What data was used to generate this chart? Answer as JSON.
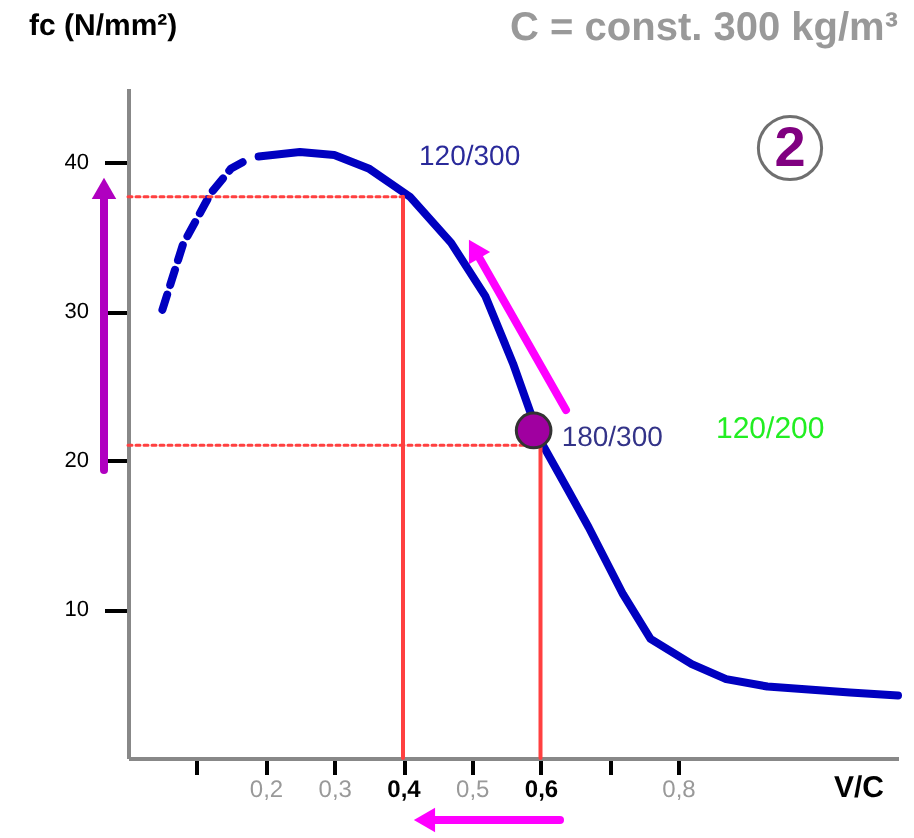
{
  "chart_data": {
    "type": "line",
    "title": "C = const. 300 kg/m³",
    "xlabel": "V/C",
    "ylabel": "fc (N/mm²)",
    "xlim": [
      0,
      1.12
    ],
    "xticks": [
      {
        "value": 0.1,
        "label": null
      },
      {
        "value": 0.2,
        "label": "0,2"
      },
      {
        "value": 0.3,
        "label": "0,3"
      },
      {
        "value": 0.4,
        "label": "0,4"
      },
      {
        "value": 0.5,
        "label": "0,5"
      },
      {
        "value": 0.6,
        "label": "0,6"
      },
      {
        "value": 0.7,
        "label": null
      },
      {
        "value": 0.8,
        "label": "0,8"
      }
    ],
    "ylim": [
      0,
      45
    ],
    "yticks": [
      10,
      20,
      30,
      40
    ],
    "grid": false,
    "series": [
      {
        "color": "#0000c0",
        "line_style": "dashed",
        "x": [
          0.05,
          0.08,
          0.12,
          0.15,
          0.17
        ],
        "values": [
          30.1,
          34.5,
          37.9,
          39.6,
          40.1
        ]
      },
      {
        "color": "#0000c0",
        "line_style": "solid",
        "x": [
          0.19,
          0.25,
          0.3,
          0.35,
          0.41,
          0.47,
          0.52,
          0.56,
          0.6,
          0.64,
          0.67,
          0.72,
          0.76,
          0.82,
          0.87,
          0.93,
          0.99,
          1.05,
          1.12
        ],
        "values": [
          40.4,
          40.7,
          40.5,
          39.6,
          37.7,
          34.6,
          31,
          26.5,
          21.3,
          18,
          15.5,
          11,
          8,
          6.3,
          5.3,
          4.8,
          4.6,
          4.4,
          4.2
        ]
      },
      {
        "color": "#ff4040",
        "line_style": "dotted",
        "x": [
          0,
          0.4
        ],
        "values": [
          37.7,
          37.7
        ]
      },
      {
        "color": "#ff4040",
        "line_style": "solid",
        "x": [
          0.4,
          0.4
        ],
        "values": [
          0,
          37.7
        ]
      },
      {
        "color": "#ff4040",
        "line_style": "dotted",
        "x": [
          0,
          0.6
        ],
        "values": [
          21,
          21
        ]
      },
      {
        "color": "#ff4040",
        "line_style": "solid",
        "x": [
          0.6,
          0.6
        ],
        "values": [
          0,
          21
        ]
      },
      {
        "type": "scatter",
        "color": "#a000a0",
        "marker": "circle",
        "x": [
          0.59
        ],
        "values": [
          22
        ]
      }
    ],
    "annotations": [
      {
        "text": "120/300",
        "x": 0.4,
        "y": 37.7
      },
      {
        "text": "180/300",
        "x": 0.59,
        "y": 22
      },
      "120/200",
      "2"
    ]
  }
}
